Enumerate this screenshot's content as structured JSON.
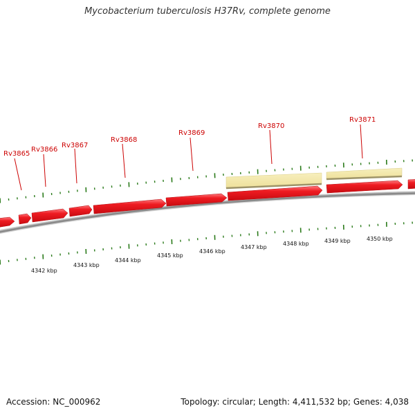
{
  "title": "Mycobacterium tuberculosis H37Rv, complete genome",
  "footer": {
    "accession": "Accession: NC_000962",
    "summary": "Topology: circular; Length: 4,411,532 bp; Genes: 4,038"
  },
  "colors": {
    "gene_fill": "#e8141a",
    "gene_highlight": "#ff6a6e",
    "gene_label": "#cc0000",
    "feature_fill": "#f2e8a8",
    "feature_edge": "#a0966a",
    "backbone": "#8a8a8a",
    "tick": "#2a7a1a"
  },
  "genes": [
    {
      "label": "Rv3865"
    },
    {
      "label": "Rv3866"
    },
    {
      "label": "Rv3867"
    },
    {
      "label": "Rv3868"
    },
    {
      "label": "Rv3869"
    },
    {
      "label": "Rv3870"
    },
    {
      "label": "Rv3871"
    }
  ],
  "kbp_labels": [
    "4342 kbp",
    "4343 kbp",
    "4344 kbp",
    "4345 kbp",
    "4346 kbp",
    "4347 kbp",
    "4348 kbp",
    "4349 kbp",
    "4350 kbp"
  ]
}
